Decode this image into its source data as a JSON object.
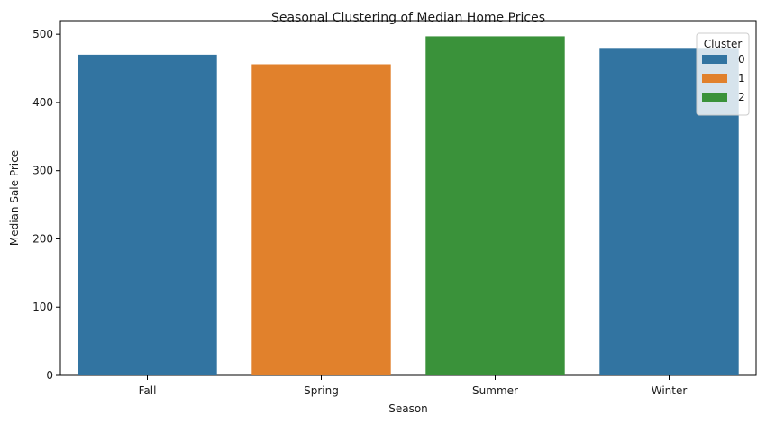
{
  "chart_data": {
    "type": "bar",
    "title": "Seasonal Clustering of Median Home Prices",
    "xlabel": "Season",
    "ylabel": "Median Sale Price",
    "categories": [
      "Fall",
      "Spring",
      "Summer",
      "Winter"
    ],
    "values": [
      470,
      456,
      497,
      480
    ],
    "cluster": [
      "0",
      "1",
      "2",
      "0"
    ],
    "ylim": [
      0,
      520
    ],
    "yticks": [
      "0",
      "100",
      "200",
      "300",
      "400",
      "500"
    ],
    "grid": false,
    "legend": {
      "title": "Cluster",
      "placement": "top-right",
      "entries": [
        {
          "label": "0",
          "color": "#3274a1"
        },
        {
          "label": "1",
          "color": "#e1812c"
        },
        {
          "label": "2",
          "color": "#3a923a"
        }
      ]
    }
  }
}
